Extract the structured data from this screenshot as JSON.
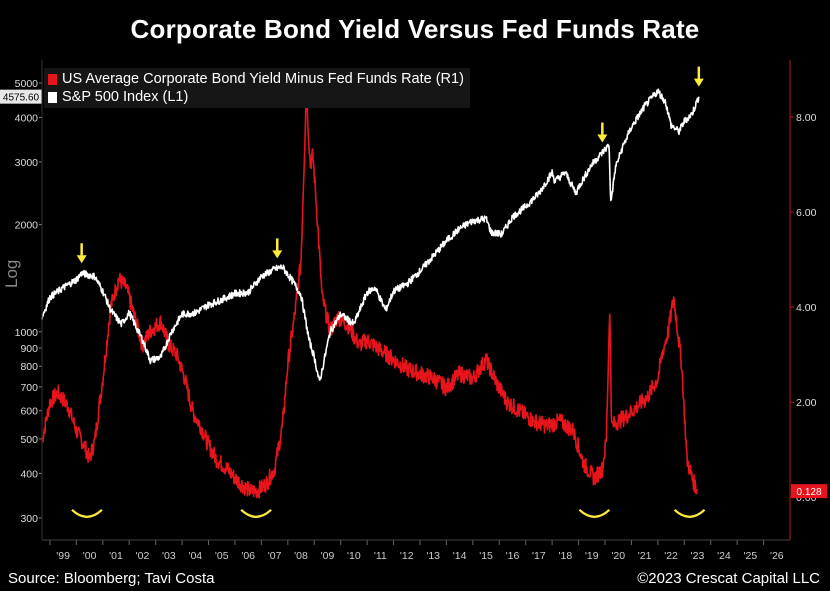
{
  "title": "Corporate Bond Yield Versus Fed Funds Rate",
  "source": "Source: Bloomberg; Tavi Costa",
  "copyright": "©2023 Crescat Capital LLC",
  "colors": {
    "sp500": "#ffffff",
    "spread": "#e8141b",
    "arrow": "#ffeb3b",
    "smile": "#ffeb3b",
    "axis": "#c0171d"
  },
  "chart_data": {
    "type": "line",
    "title": "Corporate Bond Yield Versus Fed Funds Rate",
    "legend": [
      {
        "label": "US Average Corporate Bond Yield Minus Fed Funds Rate (R1)",
        "color": "#e8141b"
      },
      {
        "label": "S&P 500 Index (L1)",
        "color": "#ffffff"
      }
    ],
    "left_axis": {
      "scale": "log",
      "label": "Log",
      "range": [
        260,
        5800
      ],
      "ticks": [
        300,
        400,
        500,
        600,
        700,
        800,
        900,
        1000,
        2000,
        3000,
        4000,
        5000
      ],
      "tick_labels": [
        "300",
        "400",
        "500",
        "600",
        "700",
        "800",
        "900",
        "1000",
        "2000",
        "3000",
        "4000",
        "5000"
      ],
      "last_value_label": "4575.60"
    },
    "right_axis": {
      "scale": "linear",
      "range": [
        -0.9,
        9.2
      ],
      "ticks": [
        0,
        2,
        4,
        6,
        8
      ],
      "tick_labels": [
        "0.00",
        "2.00",
        "4.00",
        "6.00",
        "8.00"
      ],
      "last_value_label": "0.128"
    },
    "x_axis": {
      "range": [
        1998.7,
        2027.0
      ],
      "ticks": [
        1999,
        2000,
        2001,
        2002,
        2003,
        2004,
        2005,
        2006,
        2007,
        2008,
        2009,
        2010,
        2011,
        2012,
        2013,
        2014,
        2015,
        2016,
        2017,
        2018,
        2019,
        2020,
        2021,
        2022,
        2023,
        2024,
        2025,
        2026
      ],
      "tick_labels": [
        "'99",
        "'00",
        "'01",
        "'02",
        "'03",
        "'04",
        "'05",
        "'06",
        "'07",
        "'08",
        "'09",
        "'10",
        "'11",
        "'12",
        "'13",
        "'14",
        "'15",
        "'16",
        "'17",
        "'18",
        "'19",
        "'20",
        "'21",
        "'22",
        "'23",
        "'24",
        "'25",
        "'26"
      ]
    },
    "series": [
      {
        "name": "S&P 500 Index (L1)",
        "axis": "left",
        "x": [
          1998.7,
          1999.0,
          1999.5,
          2000.0,
          2000.2,
          2000.7,
          2001.0,
          2001.3,
          2001.7,
          2002.0,
          2002.5,
          2002.8,
          2003.2,
          2003.6,
          2004.0,
          2004.5,
          2005.0,
          2005.5,
          2006.0,
          2006.5,
          2007.0,
          2007.5,
          2007.8,
          2008.2,
          2008.5,
          2008.8,
          2009.0,
          2009.2,
          2009.6,
          2010.0,
          2010.5,
          2011.0,
          2011.3,
          2011.7,
          2012.0,
          2012.5,
          2013.0,
          2013.5,
          2014.0,
          2014.5,
          2015.0,
          2015.5,
          2015.7,
          2016.1,
          2016.5,
          2017.0,
          2017.5,
          2018.0,
          2018.1,
          2018.5,
          2018.9,
          2019.0,
          2019.5,
          2020.0,
          2020.15,
          2020.22,
          2020.4,
          2020.7,
          2021.0,
          2021.5,
          2022.0,
          2022.3,
          2022.5,
          2022.8,
          2023.0,
          2023.3,
          2023.55
        ],
        "y": [
          1100,
          1250,
          1330,
          1400,
          1460,
          1430,
          1300,
          1150,
          1050,
          1130,
          950,
          830,
          850,
          1000,
          1120,
          1130,
          1190,
          1230,
          1280,
          1290,
          1430,
          1500,
          1520,
          1380,
          1270,
          950,
          850,
          720,
          1000,
          1120,
          1050,
          1290,
          1330,
          1150,
          1300,
          1360,
          1480,
          1630,
          1800,
          1950,
          2050,
          2080,
          1900,
          1880,
          2100,
          2250,
          2450,
          2800,
          2650,
          2800,
          2450,
          2550,
          2950,
          3250,
          3350,
          2300,
          2900,
          3350,
          3750,
          4300,
          4750,
          4400,
          3800,
          3650,
          3900,
          4100,
          4575.6
        ]
      },
      {
        "name": "US Average Corporate Bond Yield Minus Fed Funds Rate (R1)",
        "axis": "right",
        "x": [
          1998.7,
          1999.0,
          1999.3,
          1999.7,
          2000.0,
          2000.3,
          2000.5,
          2000.7,
          2001.0,
          2001.3,
          2001.6,
          2001.9,
          2002.2,
          2002.5,
          2002.8,
          2003.2,
          2003.5,
          2003.8,
          2004.1,
          2004.4,
          2004.7,
          2005.0,
          2005.3,
          2005.7,
          2006.0,
          2006.3,
          2006.6,
          2006.9,
          2007.2,
          2007.5,
          2007.8,
          2008.0,
          2008.3,
          2008.5,
          2008.7,
          2008.85,
          2008.95,
          2009.1,
          2009.3,
          2009.6,
          2009.9,
          2010.3,
          2010.7,
          2011.0,
          2011.5,
          2012.0,
          2012.5,
          2013.0,
          2013.5,
          2014.0,
          2014.5,
          2015.0,
          2015.5,
          2015.9,
          2016.3,
          2016.8,
          2017.3,
          2017.8,
          2018.3,
          2018.8,
          2019.2,
          2019.6,
          2019.9,
          2020.05,
          2020.18,
          2020.25,
          2020.5,
          2020.8,
          2021.2,
          2021.6,
          2022.0,
          2022.2,
          2022.4,
          2022.6,
          2022.9,
          2023.1,
          2023.3,
          2023.5
        ],
        "y": [
          1.2,
          2.0,
          2.2,
          1.9,
          1.4,
          1.1,
          0.8,
          1.2,
          2.5,
          4.0,
          4.6,
          4.4,
          3.8,
          3.2,
          3.5,
          3.7,
          3.2,
          3.0,
          2.5,
          1.8,
          1.5,
          1.1,
          0.8,
          0.6,
          0.4,
          0.25,
          0.12,
          0.15,
          0.3,
          0.6,
          1.5,
          2.8,
          4.0,
          5.0,
          8.5,
          7.0,
          7.2,
          6.0,
          4.2,
          3.5,
          3.8,
          3.6,
          3.2,
          3.3,
          3.1,
          2.9,
          2.7,
          2.6,
          2.5,
          2.3,
          2.6,
          2.5,
          2.9,
          2.4,
          2.0,
          1.8,
          1.6,
          1.5,
          1.6,
          1.4,
          0.7,
          0.4,
          0.6,
          1.2,
          4.0,
          1.5,
          1.6,
          1.7,
          1.9,
          2.1,
          2.5,
          3.1,
          3.5,
          4.2,
          2.8,
          0.8,
          0.4,
          0.128
        ]
      }
    ],
    "annotations": {
      "arrows_at_x": [
        2000.2,
        2007.6,
        2019.9,
        2023.55
      ],
      "smiles_at_x": [
        2000.4,
        2006.8,
        2019.6,
        2023.2
      ]
    }
  }
}
